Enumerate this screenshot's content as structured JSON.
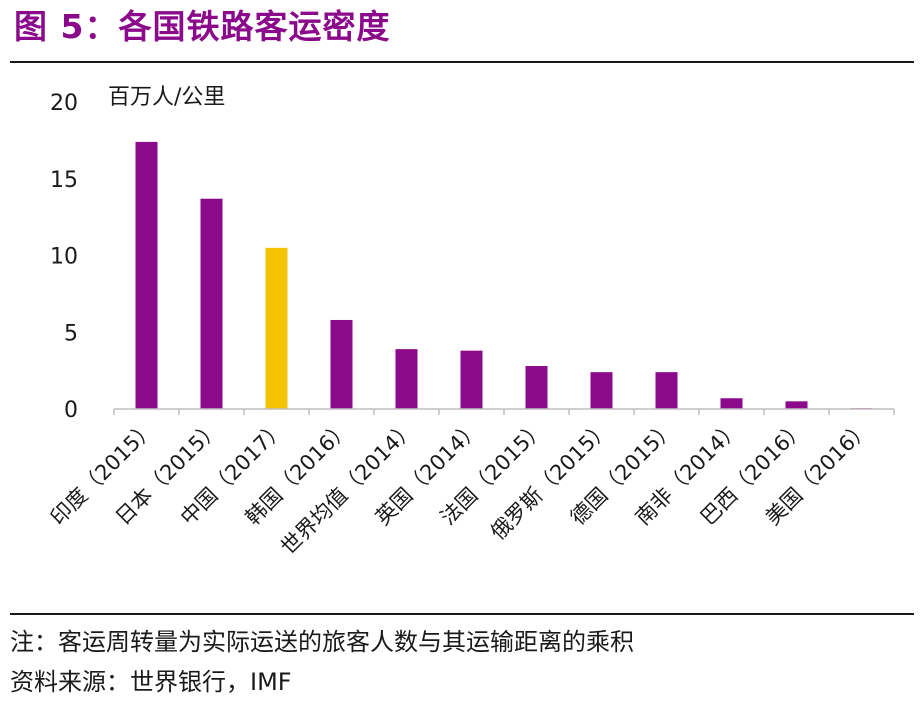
{
  "figure_title": "图 5：各国铁路客运密度",
  "chart_data": {
    "type": "bar",
    "ylabel": "百万人/公里",
    "ylim": [
      0,
      20
    ],
    "yticks": [
      0,
      5,
      10,
      15,
      20
    ],
    "categories": [
      "印度（2015）",
      "日本（2015）",
      "中国（2017）",
      "韩国（2016）",
      "世界均值（2014）",
      "英国（2014）",
      "法国（2015）",
      "俄罗斯（2015）",
      "德国（2015）",
      "南非（2014）",
      "巴西（2016）",
      "美国（2016）"
    ],
    "values": [
      17.4,
      13.7,
      10.5,
      5.8,
      3.9,
      3.8,
      2.8,
      2.4,
      2.4,
      0.7,
      0.5,
      0.05
    ],
    "bar_colors": [
      "#8b0a8b",
      "#8b0a8b",
      "#f5c400",
      "#8b0a8b",
      "#8b0a8b",
      "#8b0a8b",
      "#8b0a8b",
      "#8b0a8b",
      "#8b0a8b",
      "#8b0a8b",
      "#8b0a8b",
      "#8b0a8b"
    ],
    "highlight_color": "#f5c400",
    "bar_color": "#8b0a8b",
    "grid": false,
    "legend": "none"
  },
  "notes": {
    "note": "注：客运周转量为实际运送的旅客人数与其运输距离的乘积",
    "source": "资料来源：世界银行，IMF"
  },
  "colors": {
    "title": "#8b0a8b",
    "axis": "#bfbfbf",
    "text": "#1a1a1a"
  }
}
